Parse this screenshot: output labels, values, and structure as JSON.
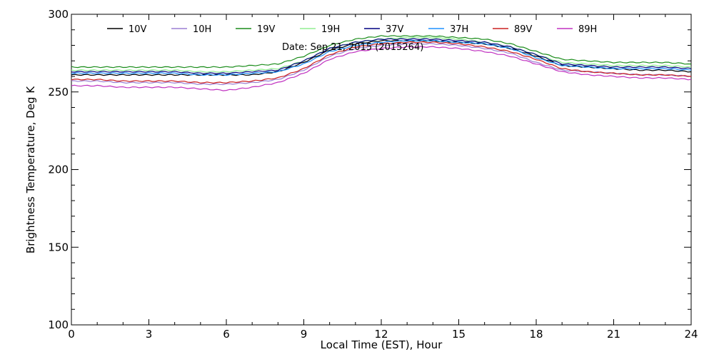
{
  "chart_data": {
    "type": "line",
    "title": "",
    "xlabel": "Local Time (EST), Hour",
    "ylabel": "Brightness Temperature, Deg K",
    "annotation": "Date: Sep 21, 2015 (2015264)",
    "xlim": [
      0,
      24
    ],
    "ylim": [
      100,
      300
    ],
    "xticks": [
      0,
      3,
      6,
      9,
      12,
      15,
      18,
      21,
      24
    ],
    "yticks": [
      100,
      150,
      200,
      250,
      300
    ],
    "grid": false,
    "legend_position": "top",
    "x": [
      0,
      1,
      2,
      3,
      4,
      5,
      6,
      7,
      8,
      9,
      10,
      11,
      12,
      13,
      14,
      15,
      16,
      17,
      18,
      19,
      20,
      21,
      22,
      23,
      24
    ],
    "series": [
      {
        "name": "10V",
        "color": "#000000",
        "values": [
          261,
          261,
          261,
          261,
          261,
          261,
          261,
          261,
          263,
          269,
          277,
          281,
          283,
          283,
          283,
          282,
          281,
          278,
          273,
          267,
          266,
          265,
          264,
          264,
          263
        ]
      },
      {
        "name": "10H",
        "color": "#9b7fd4",
        "values": [
          257,
          257,
          256,
          256,
          256,
          255,
          255,
          256,
          258,
          264,
          273,
          278,
          280,
          281,
          281,
          280,
          278,
          275,
          269,
          264,
          263,
          262,
          261,
          261,
          260
        ]
      },
      {
        "name": "19V",
        "color": "#1a8c1a",
        "values": [
          266,
          266,
          266,
          266,
          266,
          266,
          266,
          267,
          268,
          273,
          280,
          284,
          286,
          286,
          286,
          285,
          284,
          281,
          276,
          271,
          270,
          269,
          269,
          269,
          268
        ]
      },
      {
        "name": "19H",
        "color": "#90ee90",
        "values": [
          264,
          264,
          264,
          264,
          264,
          263,
          263,
          264,
          265,
          270,
          278,
          282,
          284,
          285,
          285,
          284,
          282,
          279,
          274,
          269,
          268,
          267,
          267,
          267,
          266
        ]
      },
      {
        "name": "37V",
        "color": "#000080",
        "values": [
          263,
          263,
          263,
          263,
          263,
          262,
          262,
          263,
          264,
          270,
          278,
          282,
          284,
          284,
          284,
          283,
          282,
          279,
          274,
          268,
          267,
          266,
          266,
          266,
          265
        ]
      },
      {
        "name": "37H",
        "color": "#1e90ff",
        "values": [
          262,
          262,
          262,
          262,
          262,
          261,
          261,
          262,
          263,
          268,
          276,
          280,
          282,
          283,
          283,
          282,
          281,
          278,
          272,
          267,
          266,
          265,
          265,
          265,
          264
        ]
      },
      {
        "name": "89V",
        "color": "#cc2020",
        "values": [
          258,
          258,
          257,
          257,
          257,
          256,
          256,
          257,
          259,
          265,
          274,
          279,
          281,
          282,
          282,
          281,
          279,
          276,
          271,
          265,
          263,
          262,
          261,
          261,
          260
        ]
      },
      {
        "name": "89H",
        "color": "#c030c0",
        "values": [
          254,
          254,
          253,
          253,
          253,
          252,
          251,
          253,
          256,
          262,
          271,
          276,
          278,
          279,
          279,
          278,
          276,
          273,
          268,
          263,
          261,
          260,
          259,
          259,
          258
        ]
      }
    ]
  }
}
